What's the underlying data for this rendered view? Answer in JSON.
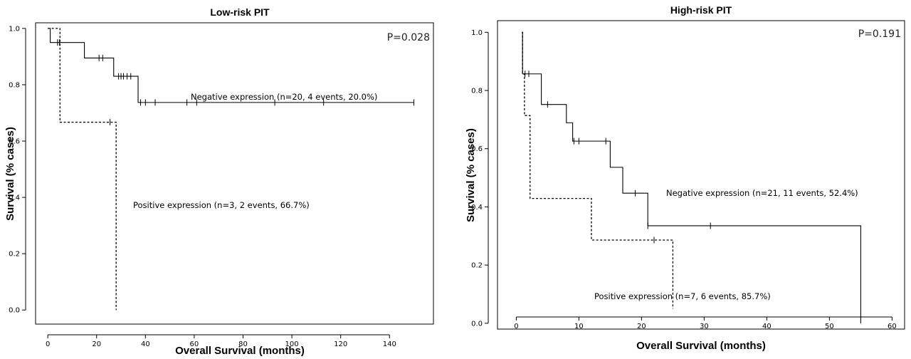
{
  "chart_data": [
    {
      "type": "line",
      "subtype": "kaplan-meier",
      "title": "Low-risk PIT",
      "xlabel": "Overall Survival (months)",
      "ylabel": "Survival (% cases)",
      "xlim": [
        -5,
        158
      ],
      "ylim": [
        -0.05,
        1.02
      ],
      "xticks": [
        0,
        20,
        40,
        60,
        80,
        100,
        120,
        140
      ],
      "xtick_labels": [
        "0",
        "20",
        "40",
        "60",
        "80",
        "100",
        "120",
        "140"
      ],
      "yticks": [
        0.0,
        0.2,
        0.4,
        0.6,
        0.8,
        1.0
      ],
      "ytick_labels": [
        "0.0",
        "0.2",
        "0.4",
        "0.6",
        "0.8",
        "1.0"
      ],
      "p_value": "P=0.028",
      "series": [
        {
          "name": "Negative expression",
          "label": "Negative expression (n=20, 4 events, 20.0%)",
          "style": "solid",
          "steps": [
            [
              0,
              1.0
            ],
            [
              1,
              0.95
            ],
            [
              15,
              0.895
            ],
            [
              27,
              0.83
            ],
            [
              37,
              0.737
            ],
            [
              150,
              0.737
            ]
          ],
          "censored": [
            [
              4,
              0.95
            ],
            [
              4.8,
              0.95
            ],
            [
              21,
              0.895
            ],
            [
              22.5,
              0.895
            ],
            [
              29,
              0.83
            ],
            [
              30,
              0.83
            ],
            [
              31,
              0.83
            ],
            [
              32.5,
              0.83
            ],
            [
              34,
              0.83
            ],
            [
              38,
              0.737
            ],
            [
              40,
              0.737
            ],
            [
              44,
              0.737
            ],
            [
              57,
              0.737
            ],
            [
              61,
              0.737
            ],
            [
              93,
              0.737
            ],
            [
              113,
              0.737
            ],
            [
              150,
              0.737
            ]
          ]
        },
        {
          "name": "Positive expression",
          "label": "Positive expression (n=3, 2 events, 66.7%)",
          "style": "dashed",
          "steps": [
            [
              0,
              1.0
            ],
            [
              5,
              0.667
            ],
            [
              28,
              0.0
            ]
          ],
          "censored": [
            [
              25.5,
              0.667
            ]
          ]
        }
      ]
    },
    {
      "type": "line",
      "subtype": "kaplan-meier",
      "title": "High-risk PIT",
      "xlabel": "Overall Survival (months)",
      "ylabel": "Survival (% cases)",
      "xlim": [
        -3,
        62
      ],
      "ylim": [
        -0.02,
        1.04
      ],
      "xticks": [
        0,
        10,
        20,
        30,
        40,
        50,
        60
      ],
      "xtick_labels": [
        "0",
        "10",
        "20",
        "30",
        "40",
        "50",
        "60"
      ],
      "yticks": [
        0.0,
        0.2,
        0.4,
        0.6,
        0.8,
        1.0
      ],
      "ytick_labels": [
        "0.0",
        "0.2",
        "0.4",
        "0.6",
        "0.8",
        "1.0"
      ],
      "p_value": "P=0.191",
      "series": [
        {
          "name": "Negative expression",
          "label": "Negative expression (n=21, 11 events, 52.4%)",
          "style": "solid",
          "steps": [
            [
              0.9,
              1.0
            ],
            [
              1.0,
              0.857
            ],
            [
              4,
              0.752
            ],
            [
              8,
              0.689
            ],
            [
              9,
              0.626
            ],
            [
              15,
              0.536
            ],
            [
              17,
              0.447
            ],
            [
              21,
              0.335
            ],
            [
              55,
              0.0
            ]
          ],
          "censored": [
            [
              1.4,
              0.857
            ],
            [
              2.0,
              0.857
            ],
            [
              5,
              0.752
            ],
            [
              9.2,
              0.626
            ],
            [
              10,
              0.626
            ],
            [
              14.3,
              0.626
            ],
            [
              19,
              0.447
            ],
            [
              21,
              0.335
            ],
            [
              31,
              0.335
            ]
          ]
        },
        {
          "name": "Positive expression",
          "label": "Positive expression (n=7, 6 events, 85.7%)",
          "style": "dashed",
          "steps": [
            [
              0.9,
              1.0
            ],
            [
              1.0,
              0.857
            ],
            [
              1.3,
              0.714
            ],
            [
              2.2,
              0.429
            ],
            [
              12,
              0.286
            ],
            [
              25,
              0.05
            ]
          ],
          "censored": [
            [
              22,
              0.286
            ]
          ]
        }
      ]
    }
  ]
}
